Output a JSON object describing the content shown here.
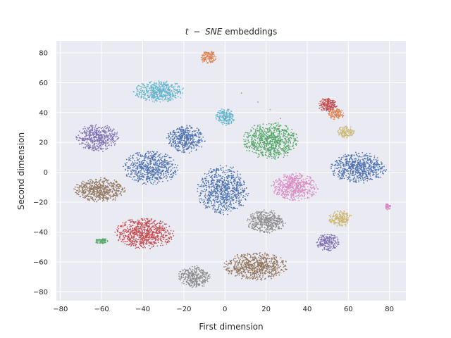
{
  "chart_data": {
    "type": "scatter",
    "title_prefix": "t",
    "title_minus": "−",
    "title_italic": "SNE",
    "title_suffix": " embeddings",
    "xlabel": "First dimension",
    "ylabel": "Second dimension",
    "xlim": [
      -82,
      88
    ],
    "ylim": [
      -86,
      88
    ],
    "xticks": [
      -80,
      -60,
      -40,
      -20,
      0,
      20,
      40,
      60,
      80
    ],
    "yticks": [
      -80,
      -60,
      -40,
      -20,
      0,
      20,
      40,
      60,
      80
    ],
    "xtick_labels": [
      "−80",
      "−60",
      "−40",
      "−20",
      "0",
      "20",
      "40",
      "60",
      "80"
    ],
    "ytick_labels": [
      "−80",
      "−60",
      "−40",
      "−20",
      "0",
      "20",
      "40",
      "60",
      "80"
    ],
    "grid": true,
    "legend": "none",
    "background_color": "#eaeaf2",
    "clusters": [
      {
        "cx": -8,
        "cy": 77,
        "rx": 3.5,
        "ry": 4.5,
        "color": "#dd8452",
        "n": 140
      },
      {
        "cx": -32,
        "cy": 54,
        "rx": 12,
        "ry": 7,
        "color": "#64b5cd",
        "n": 520
      },
      {
        "cx": 0,
        "cy": 37,
        "rx": 4.5,
        "ry": 5.5,
        "color": "#64b5cd",
        "n": 200
      },
      {
        "cx": -62,
        "cy": 23,
        "rx": 10,
        "ry": 9,
        "color": "#8172b3",
        "n": 480
      },
      {
        "cx": -19,
        "cy": 22,
        "rx": 9,
        "ry": 9,
        "color": "#4c72b0",
        "n": 420
      },
      {
        "cx": -36,
        "cy": 3,
        "rx": 13,
        "ry": 11,
        "color": "#4c72b0",
        "n": 620
      },
      {
        "cx": -1,
        "cy": -12,
        "rx": 12,
        "ry": 16,
        "color": "#4c72b0",
        "n": 760
      },
      {
        "cx": 22,
        "cy": 21,
        "rx": 13,
        "ry": 12,
        "color": "#55a868",
        "n": 760
      },
      {
        "cx": 34,
        "cy": -10,
        "rx": 11,
        "ry": 9,
        "color": "#da8bc3",
        "n": 520
      },
      {
        "cx": 50,
        "cy": 45,
        "rx": 4.5,
        "ry": 4.5,
        "color": "#c44e52",
        "n": 180
      },
      {
        "cx": 54,
        "cy": 39,
        "rx": 4,
        "ry": 3.5,
        "color": "#dd8452",
        "n": 120
      },
      {
        "cx": 59,
        "cy": 27,
        "rx": 4,
        "ry": 4,
        "color": "#ccb974",
        "n": 130
      },
      {
        "cx": 65,
        "cy": 3,
        "rx": 13,
        "ry": 10,
        "color": "#4c72b0",
        "n": 640
      },
      {
        "cx": 79,
        "cy": -23,
        "rx": 1.8,
        "ry": 2,
        "color": "#da8bc3",
        "n": 45
      },
      {
        "cx": 56,
        "cy": -31,
        "rx": 5.5,
        "ry": 5.5,
        "color": "#ccb974",
        "n": 220
      },
      {
        "cx": 50,
        "cy": -47,
        "rx": 5.5,
        "ry": 5.5,
        "color": "#8172b3",
        "n": 220
      },
      {
        "cx": -61,
        "cy": -12,
        "rx": 12,
        "ry": 8,
        "color": "#937860",
        "n": 560
      },
      {
        "cx": -39,
        "cy": -41,
        "rx": 14,
        "ry": 10,
        "color": "#c44e52",
        "n": 760
      },
      {
        "cx": 20,
        "cy": -33,
        "rx": 9,
        "ry": 7.5,
        "color": "#8c8c8c",
        "n": 420
      },
      {
        "cx": -60,
        "cy": -46,
        "rx": 3,
        "ry": 2,
        "color": "#55a868",
        "n": 70
      },
      {
        "cx": 15,
        "cy": -63,
        "rx": 15,
        "ry": 9,
        "color": "#937860",
        "n": 720
      },
      {
        "cx": -15,
        "cy": -70,
        "rx": 7.5,
        "ry": 7.5,
        "color": "#8c8c8c",
        "n": 320
      }
    ],
    "stray_points": [
      {
        "x": 8,
        "y": 53,
        "color": "#8c8c8c"
      },
      {
        "x": 16,
        "y": 47,
        "color": "#8c8c8c"
      },
      {
        "x": 22,
        "y": 42,
        "color": "#64b5cd"
      },
      {
        "x": 27,
        "y": 36,
        "color": "#8c8c8c"
      }
    ]
  }
}
